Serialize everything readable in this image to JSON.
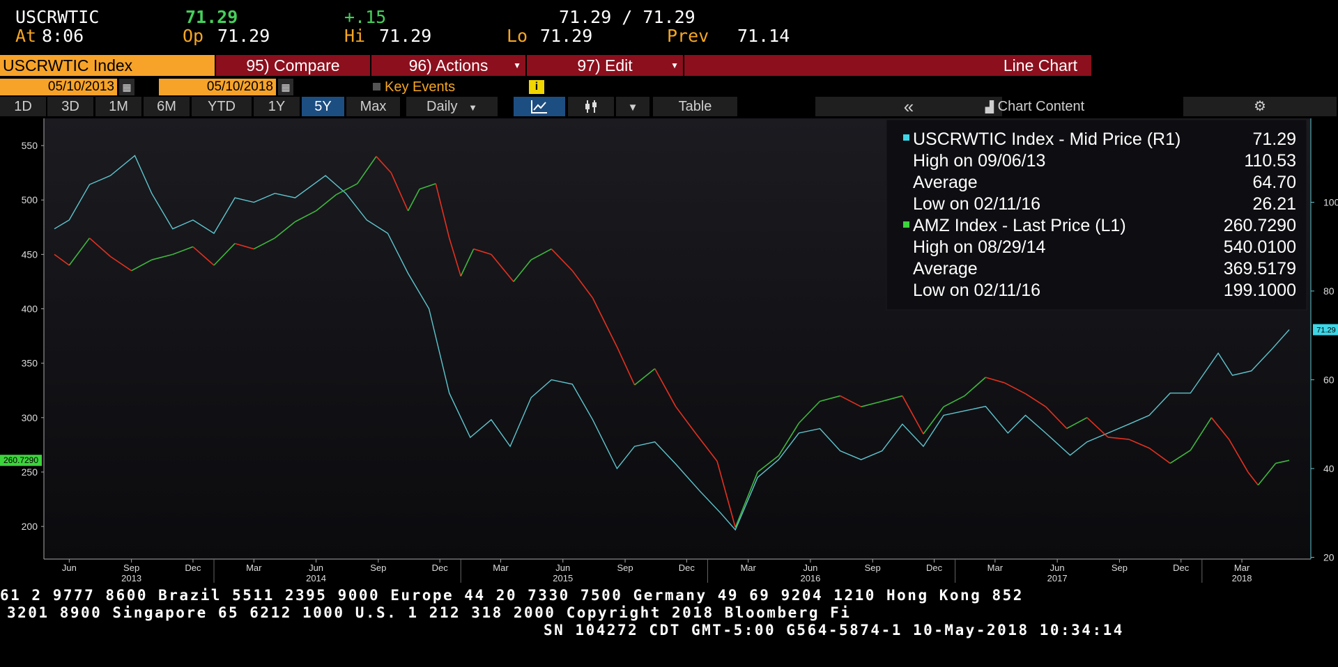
{
  "quote": {
    "ticker": "USCRWTIC",
    "last": "71.29",
    "change": "+.15",
    "bid_ask": "71.29 / 71.29",
    "time_label": "At",
    "time": "8:06",
    "open_label": "Op",
    "open": "71.29",
    "high_label": "Hi",
    "high": "71.29",
    "low_label": "Lo",
    "low": "71.29",
    "prev_label": "Prev",
    "prev": "71.14"
  },
  "menu": {
    "security": "USCRWTIC Index",
    "compare": "95) Compare",
    "actions": "96) Actions",
    "edit": "97) Edit",
    "chart_type": "Line Chart"
  },
  "range": {
    "start": "05/10/2013",
    "separator": "-",
    "end": "05/10/2018",
    "key_events": "Key Events"
  },
  "toolbar": {
    "periods": [
      "1D",
      "3D",
      "1M",
      "6M",
      "YTD",
      "1Y",
      "5Y",
      "Max"
    ],
    "selected_period": "5Y",
    "frequency": "Daily",
    "table": "Table",
    "collapse": "«",
    "chart_content": "Chart Content"
  },
  "legend": {
    "rows": [
      {
        "label": "USCRWTIC Index - Mid Price (R1)",
        "value": "71.29"
      },
      {
        "label": "High on 09/06/13",
        "value": "110.53"
      },
      {
        "label": "Average",
        "value": "64.70"
      },
      {
        "label": "Low on 02/11/16",
        "value": "26.21"
      },
      {
        "label": "AMZ Index - Last Price (L1)",
        "value": "260.7290"
      },
      {
        "label": "High on 08/29/14",
        "value": "540.0100"
      },
      {
        "label": "Average",
        "value": "369.5179"
      },
      {
        "label": "Low on 02/11/16",
        "value": "199.1000"
      }
    ]
  },
  "colors": {
    "wti": "#5fc6cf",
    "amz_up": "#3fb83f",
    "amz_down": "#e5301f",
    "wti_swatch": "#3ed6e6",
    "amz_swatch": "#3bd43b",
    "menu_orange": "#f7a329",
    "menu_red": "#8c0f1d",
    "axis": "#5fc6cf"
  },
  "ticker_lines": [
    "61 2 9777 8600 Brazil 5511 2395 9000 Europe 44 20 7330 7500 Germany 49 69 9204 1210 Hong Kong 852",
    "3201 8900      Singapore 65 6212 1000      U.S. 1 212 318 2000       Copyright 2018 Bloomberg Fi",
    "SN 104272 CDT  GMT-5:00 G564-5874-1 10-May-2018 10:34:14"
  ],
  "chart_data": {
    "type": "line",
    "x_start": "2013-05-10",
    "x_end": "2018-05-10",
    "left_axis": {
      "ticks": [
        200,
        250,
        300,
        350,
        400,
        450,
        500,
        550
      ],
      "ylim": [
        170,
        575
      ]
    },
    "right_axis": {
      "ticks": [
        20,
        40,
        60,
        80,
        100
      ],
      "ylim": [
        19.6,
        118.9
      ]
    },
    "x_ticks": [
      "Jun",
      "Sep",
      "Dec",
      "Mar",
      "Jun",
      "Sep",
      "Dec",
      "Mar",
      "Jun",
      "Sep",
      "Dec",
      "Mar",
      "Jun",
      "Sep",
      "Dec",
      "Mar",
      "Jun",
      "Sep",
      "Dec",
      "Mar"
    ],
    "x_tick_dates": [
      "2013-06-01",
      "2013-09-01",
      "2013-12-01",
      "2014-03-01",
      "2014-06-01",
      "2014-09-01",
      "2014-12-01",
      "2015-03-01",
      "2015-06-01",
      "2015-09-01",
      "2015-12-01",
      "2016-03-01",
      "2016-06-01",
      "2016-09-01",
      "2016-12-01",
      "2017-03-01",
      "2017-06-01",
      "2017-09-01",
      "2017-12-01",
      "2018-03-01"
    ],
    "years": [
      "2013",
      "2014",
      "2015",
      "2016",
      "2017",
      "2018"
    ],
    "year_dates": [
      "2013-09-01",
      "2014-06-01",
      "2015-06-01",
      "2016-06-01",
      "2017-06-01",
      "2018-03-01"
    ],
    "last_value_tags": {
      "left": "260.7290",
      "right": "71.29"
    },
    "series": [
      {
        "name": "USCRWTIC Index - Mid Price (R1)",
        "axis": "right",
        "points": [
          [
            "2013-05-10",
            94
          ],
          [
            "2013-06-01",
            96
          ],
          [
            "2013-07-01",
            104
          ],
          [
            "2013-08-01",
            106
          ],
          [
            "2013-09-06",
            110.5
          ],
          [
            "2013-10-01",
            102
          ],
          [
            "2013-11-01",
            94
          ],
          [
            "2013-12-01",
            96
          ],
          [
            "2014-01-01",
            93
          ],
          [
            "2014-02-01",
            101
          ],
          [
            "2014-03-01",
            100
          ],
          [
            "2014-04-01",
            102
          ],
          [
            "2014-05-01",
            101
          ],
          [
            "2014-06-15",
            106
          ],
          [
            "2014-07-15",
            102
          ],
          [
            "2014-08-15",
            96
          ],
          [
            "2014-09-15",
            93
          ],
          [
            "2014-10-15",
            84
          ],
          [
            "2014-11-15",
            76
          ],
          [
            "2014-12-15",
            57
          ],
          [
            "2015-01-15",
            47
          ],
          [
            "2015-02-15",
            51
          ],
          [
            "2015-03-15",
            45
          ],
          [
            "2015-04-15",
            56
          ],
          [
            "2015-05-15",
            60
          ],
          [
            "2015-06-15",
            59
          ],
          [
            "2015-07-15",
            51
          ],
          [
            "2015-08-20",
            40
          ],
          [
            "2015-09-15",
            45
          ],
          [
            "2015-10-15",
            46
          ],
          [
            "2015-11-15",
            41
          ],
          [
            "2015-12-20",
            35
          ],
          [
            "2016-01-20",
            30
          ],
          [
            "2016-02-11",
            26.2
          ],
          [
            "2016-03-15",
            38
          ],
          [
            "2016-04-15",
            42
          ],
          [
            "2016-05-15",
            48
          ],
          [
            "2016-06-15",
            49
          ],
          [
            "2016-07-15",
            44
          ],
          [
            "2016-08-15",
            42
          ],
          [
            "2016-09-15",
            44
          ],
          [
            "2016-10-15",
            50
          ],
          [
            "2016-11-15",
            45
          ],
          [
            "2016-12-15",
            52
          ],
          [
            "2017-01-15",
            53
          ],
          [
            "2017-02-15",
            54
          ],
          [
            "2017-03-20",
            48
          ],
          [
            "2017-04-15",
            52
          ],
          [
            "2017-05-15",
            48
          ],
          [
            "2017-06-20",
            43
          ],
          [
            "2017-07-15",
            46
          ],
          [
            "2017-08-15",
            48
          ],
          [
            "2017-09-15",
            50
          ],
          [
            "2017-10-15",
            52
          ],
          [
            "2017-11-15",
            57
          ],
          [
            "2017-12-15",
            57
          ],
          [
            "2018-01-25",
            66
          ],
          [
            "2018-02-15",
            61
          ],
          [
            "2018-03-15",
            62
          ],
          [
            "2018-04-15",
            67
          ],
          [
            "2018-05-10",
            71.29
          ]
        ]
      },
      {
        "name": "AMZ Index - Last Price (L1)",
        "axis": "left",
        "points": [
          [
            "2013-05-10",
            450
          ],
          [
            "2013-06-01",
            440
          ],
          [
            "2013-07-01",
            465
          ],
          [
            "2013-08-01",
            448
          ],
          [
            "2013-09-01",
            435
          ],
          [
            "2013-10-01",
            445
          ],
          [
            "2013-11-01",
            450
          ],
          [
            "2013-12-01",
            457
          ],
          [
            "2014-01-01",
            440
          ],
          [
            "2014-02-01",
            460
          ],
          [
            "2014-03-01",
            455
          ],
          [
            "2014-04-01",
            465
          ],
          [
            "2014-05-01",
            480
          ],
          [
            "2014-06-01",
            490
          ],
          [
            "2014-07-01",
            505
          ],
          [
            "2014-08-01",
            515
          ],
          [
            "2014-08-29",
            540
          ],
          [
            "2014-09-20",
            525
          ],
          [
            "2014-10-15",
            490
          ],
          [
            "2014-11-01",
            510
          ],
          [
            "2014-11-25",
            515
          ],
          [
            "2014-12-15",
            465
          ],
          [
            "2015-01-01",
            430
          ],
          [
            "2015-01-20",
            455
          ],
          [
            "2015-02-15",
            450
          ],
          [
            "2015-03-20",
            425
          ],
          [
            "2015-04-15",
            445
          ],
          [
            "2015-05-15",
            455
          ],
          [
            "2015-06-15",
            435
          ],
          [
            "2015-07-15",
            410
          ],
          [
            "2015-08-20",
            365
          ],
          [
            "2015-09-15",
            330
          ],
          [
            "2015-10-15",
            345
          ],
          [
            "2015-11-15",
            310
          ],
          [
            "2015-12-15",
            285
          ],
          [
            "2016-01-15",
            260
          ],
          [
            "2016-02-11",
            199.1
          ],
          [
            "2016-03-15",
            250
          ],
          [
            "2016-04-15",
            265
          ],
          [
            "2016-05-15",
            295
          ],
          [
            "2016-06-15",
            315
          ],
          [
            "2016-07-15",
            320
          ],
          [
            "2016-08-15",
            310
          ],
          [
            "2016-09-15",
            315
          ],
          [
            "2016-10-15",
            320
          ],
          [
            "2016-11-15",
            285
          ],
          [
            "2016-12-15",
            310
          ],
          [
            "2017-01-15",
            320
          ],
          [
            "2017-02-15",
            337
          ],
          [
            "2017-03-15",
            332
          ],
          [
            "2017-04-15",
            322
          ],
          [
            "2017-05-15",
            310
          ],
          [
            "2017-06-15",
            290
          ],
          [
            "2017-07-15",
            300
          ],
          [
            "2017-08-15",
            282
          ],
          [
            "2017-09-15",
            280
          ],
          [
            "2017-10-15",
            272
          ],
          [
            "2017-11-15",
            258
          ],
          [
            "2017-12-15",
            270
          ],
          [
            "2018-01-15",
            300
          ],
          [
            "2018-02-10",
            280
          ],
          [
            "2018-03-10",
            250
          ],
          [
            "2018-03-25",
            238
          ],
          [
            "2018-04-20",
            258
          ],
          [
            "2018-05-10",
            260.729
          ]
        ]
      }
    ]
  }
}
